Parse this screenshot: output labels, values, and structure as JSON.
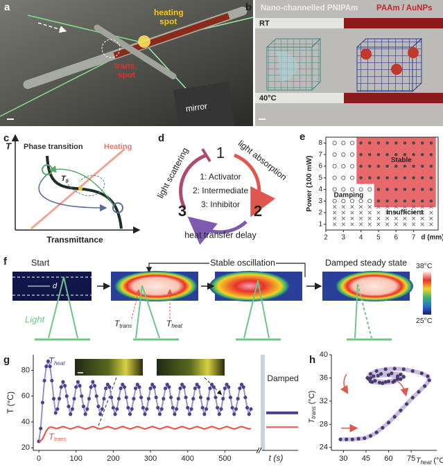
{
  "panels": {
    "a": {
      "label": "a",
      "heating_spot": [
        "heating",
        "spot"
      ],
      "trans_spot": [
        "trans.",
        "spot"
      ],
      "mirror": "mirror"
    },
    "b": {
      "label": "b",
      "left_title": "Nano-channelled PNIPAm",
      "right_title": "PAAm / AuNPs",
      "top_condition": "RT",
      "bottom_condition": "40°C"
    },
    "c": {
      "label": "c",
      "y_axis": "T",
      "x_axis": "Transmittance",
      "phase_transition": "Phase transition",
      "heating": "Heating",
      "ts_symbol": "T",
      "ts_subscript": "s"
    },
    "d": {
      "label": "d",
      "node_1": "1",
      "node_2": "2",
      "node_3": "3",
      "roles": [
        "1: Activator",
        "2: Intermediate",
        "3: Inhibitor"
      ],
      "arc_1_2": "light absorption",
      "arc_2_3": "heat transfer delay",
      "arc_3_1": "light scattering"
    },
    "f": {
      "label": "f",
      "start": "Start",
      "stable": "Stable oscillation",
      "damped": "Damped steady state",
      "d": "d",
      "light": "Light",
      "t_trans_symbol": "T",
      "t_trans_sub": "trans",
      "t_heat_symbol": "T",
      "t_heat_sub": "heat",
      "colorbar_max": "38°C",
      "colorbar_min": "25°C"
    }
  },
  "chart_data": [
    {
      "panel_label": "e",
      "type": "scatter",
      "y_label": "Power (100 mW)",
      "x_label": "d (mm)",
      "xlim": [
        2,
        8.4
      ],
      "xticks": [
        2,
        3,
        4,
        5,
        6,
        7
      ],
      "ylim": [
        0.5,
        8.5
      ],
      "yticks": [
        1,
        2,
        3,
        4,
        5,
        6,
        7,
        8
      ],
      "region_color": "#e8696b",
      "series": [
        {
          "name": "Stable",
          "marker": "dot",
          "color": "#4a4a4a",
          "x": [
            4,
            4.5,
            5,
            5.5,
            6,
            6.5,
            7,
            7.5,
            8,
            4,
            4.5,
            5,
            5.5,
            6,
            6.5,
            7,
            7.5,
            8,
            4,
            4.5,
            5,
            5.5,
            6,
            6.5,
            7,
            7.5,
            8,
            4,
            4.5,
            5,
            5.5,
            6,
            6.5,
            7,
            7.5,
            8,
            5,
            5.5,
            6,
            6.5,
            7,
            7.5,
            8,
            5,
            5.5,
            6,
            6.5,
            7,
            7.5,
            8
          ],
          "y": [
            8,
            8,
            8,
            8,
            8,
            8,
            8,
            8,
            8,
            7,
            7,
            7,
            7,
            7,
            7,
            7,
            7,
            7,
            6,
            6,
            6,
            6,
            6,
            6,
            6,
            6,
            6,
            5,
            5,
            5,
            5,
            5,
            5,
            5,
            5,
            5,
            4,
            4,
            4,
            4,
            4,
            4,
            4,
            3,
            3,
            3,
            3,
            3,
            3,
            3
          ]
        },
        {
          "name": "Damping",
          "marker": "circle",
          "color": "#6a6a6a",
          "x": [
            2.5,
            3,
            3.5,
            2.5,
            3,
            3.5,
            2.5,
            3,
            3.5,
            2.5,
            3,
            3.5,
            2.5,
            3,
            3.5,
            4,
            4.5,
            2.5,
            3,
            3.5,
            4,
            4.5
          ],
          "y": [
            8,
            8,
            8,
            7,
            7,
            7,
            6,
            6,
            6,
            5,
            5,
            5,
            4,
            4,
            4,
            4,
            4,
            3,
            3,
            3,
            3,
            3
          ]
        },
        {
          "name": "Insufficient",
          "marker": "cross",
          "color": "#6a6a6a",
          "x": [
            2.5,
            3,
            3.5,
            4,
            4.5,
            5,
            5.5,
            6,
            6.5,
            7,
            7.5,
            8,
            2.5,
            3,
            3.5,
            4,
            4.5,
            5,
            5.5,
            6,
            6.5,
            7,
            7.5,
            8,
            2.5,
            3,
            3.5,
            4,
            4.5,
            5,
            5.5,
            6,
            6.5,
            7,
            7.5,
            8,
            2.5,
            3,
            3.5,
            4,
            4.5,
            5,
            5.5,
            6,
            6.5,
            7,
            7.5,
            8
          ],
          "y": [
            2.5,
            2.5,
            2.5,
            2.5,
            2.5,
            2.5,
            2.5,
            2.5,
            2.5,
            2.5,
            2.5,
            2.5,
            2,
            2,
            2,
            2,
            2,
            2,
            2,
            2,
            2,
            2,
            2,
            2,
            1.5,
            1.5,
            1.5,
            1.5,
            1.5,
            1.5,
            1.5,
            1.5,
            1.5,
            1.5,
            1.5,
            1.5,
            1,
            1,
            1,
            1,
            1,
            1,
            1,
            1,
            1,
            1,
            1,
            1
          ]
        }
      ]
    },
    {
      "panel_label": "g",
      "type": "line",
      "y_label": "T (°C)",
      "x_label": "t (s)",
      "damped_label": "Damped",
      "xlim": [
        -15,
        585
      ],
      "xticks": [
        0,
        100,
        200,
        300,
        400,
        500
      ],
      "ylim": [
        18,
        92
      ],
      "yticks": [
        20,
        40,
        60,
        80
      ],
      "x": [
        0,
        5,
        10,
        15,
        20,
        25,
        30,
        35,
        40,
        45,
        50,
        55,
        60,
        65,
        70,
        75,
        80,
        85,
        90,
        95,
        100,
        105,
        110,
        115,
        120,
        125,
        130,
        135,
        140,
        145,
        150,
        155,
        160,
        165,
        170,
        175,
        180,
        185,
        190,
        195,
        200,
        205,
        210,
        215,
        220,
        225,
        230,
        235,
        240,
        245,
        250,
        255,
        260,
        265,
        270,
        275,
        280,
        285,
        290,
        295,
        300,
        305,
        310,
        315,
        320,
        325,
        330,
        335,
        340,
        345,
        350,
        355,
        360,
        365,
        370,
        375,
        380,
        385,
        390,
        395,
        400,
        405,
        410,
        415,
        420,
        425,
        430,
        435,
        440,
        445,
        450,
        455,
        460,
        465,
        470,
        475,
        480,
        485,
        490,
        495,
        500,
        505,
        510,
        515,
        520,
        525,
        530,
        535,
        540,
        545,
        550,
        555,
        560,
        565,
        570
      ],
      "series": [
        {
          "name": "T",
          "subscript": "heat",
          "color": "#4f3f8f",
          "line_color": "#9c8fd0",
          "damped_value": 47,
          "values": [
            25,
            35,
            55,
            72,
            83,
            87,
            83,
            72,
            58,
            47,
            50,
            58,
            67,
            71,
            68,
            60,
            52,
            46,
            50,
            58,
            67,
            71,
            68,
            60,
            52,
            46,
            50,
            58,
            67,
            71,
            68,
            60,
            52,
            46,
            50,
            58,
            66,
            69,
            67,
            59,
            51,
            46,
            50,
            58,
            66,
            69,
            67,
            59,
            51,
            46,
            50,
            58,
            66,
            69,
            67,
            59,
            51,
            46,
            50,
            58,
            66,
            69,
            67,
            59,
            51,
            46,
            50,
            58,
            66,
            69,
            67,
            59,
            51,
            46,
            50,
            58,
            66,
            69,
            67,
            59,
            51,
            46,
            50,
            58,
            66,
            69,
            67,
            59,
            51,
            46,
            50,
            58,
            66,
            69,
            67,
            59,
            51,
            46,
            50,
            58,
            66,
            69,
            67,
            59,
            51,
            46,
            50,
            58,
            66,
            69,
            67,
            59,
            51,
            46,
            50
          ]
        },
        {
          "name": "T",
          "subscript": "trans",
          "color": "#e8584f",
          "line_color": "#e8584f",
          "damped_value": 36,
          "values": [
            25,
            25.5,
            27,
            30,
            33,
            35,
            36,
            36,
            35.5,
            35,
            35,
            35.5,
            36,
            36.5,
            36,
            35.5,
            35,
            34.5,
            35,
            35.5,
            36,
            36.5,
            36,
            35.5,
            35,
            34.5,
            35,
            35.5,
            36,
            36.5,
            36,
            35.5,
            35,
            34.5,
            35,
            35.5,
            36,
            36.5,
            36,
            35.5,
            35,
            34.5,
            35,
            35.5,
            36,
            36.5,
            36,
            35.5,
            35,
            34.5,
            35,
            35.5,
            36,
            36.5,
            36,
            35.5,
            35,
            34.5,
            35,
            35.5,
            36,
            36.5,
            36,
            35.5,
            35,
            34.5,
            35,
            35.5,
            36,
            36.5,
            36,
            35.5,
            35,
            34.5,
            35,
            35.5,
            36,
            36.5,
            36,
            35.5,
            35,
            34.5,
            35,
            35.5,
            36,
            36.5,
            36,
            35.5,
            35,
            34.5,
            35,
            35.5,
            36,
            36.5,
            36,
            35.5,
            35,
            34.5,
            35,
            35.5,
            36,
            36.5,
            36,
            35.5,
            35,
            34.5,
            35,
            35.5,
            36,
            36.5,
            36,
            35.5,
            35,
            34.5,
            35
          ]
        }
      ]
    },
    {
      "panel_label": "h",
      "type": "line",
      "x_label_symbol": "T",
      "x_label_subscript": "heat",
      "x_label_unit": " (°C)",
      "y_label_symbol": "T",
      "y_label_subscript": "trans",
      "y_label_unit": " (°C)",
      "xlim": [
        22,
        92
      ],
      "xticks": [
        30,
        45,
        60,
        75
      ],
      "ylim": [
        23.5,
        40
      ],
      "yticks": [
        24,
        28,
        32,
        36,
        40
      ],
      "series": [
        {
          "color": "#4b3a6b",
          "line_color": "#b9acd9",
          "x": [
            28,
            32,
            36,
            40,
            44,
            48,
            52,
            56,
            60,
            64,
            68,
            72,
            76,
            80,
            84,
            87,
            86,
            82,
            76,
            70,
            64,
            58,
            52,
            48,
            46,
            48,
            54,
            60,
            66,
            70,
            68,
            62,
            55,
            50,
            47,
            49,
            56,
            63,
            68,
            66,
            60,
            53,
            48,
            51,
            58,
            64,
            66
          ],
          "y": [
            25.4,
            25.4,
            25.4,
            25.5,
            25.6,
            26,
            26.6,
            27.4,
            28.3,
            29.3,
            30.4,
            31.5,
            32.6,
            33.6,
            34.6,
            35.6,
            36.3,
            36.8,
            37.2,
            37.5,
            37.6,
            37.5,
            37.2,
            36.7,
            36,
            35.4,
            35.2,
            35.4,
            35.8,
            36.2,
            36.6,
            36.8,
            36.7,
            36.3,
            35.8,
            35.3,
            35.1,
            35.3,
            35.8,
            36.3,
            36.5,
            36.4,
            36,
            35.5,
            35.3,
            35.5,
            35.9
          ]
        }
      ]
    }
  ]
}
